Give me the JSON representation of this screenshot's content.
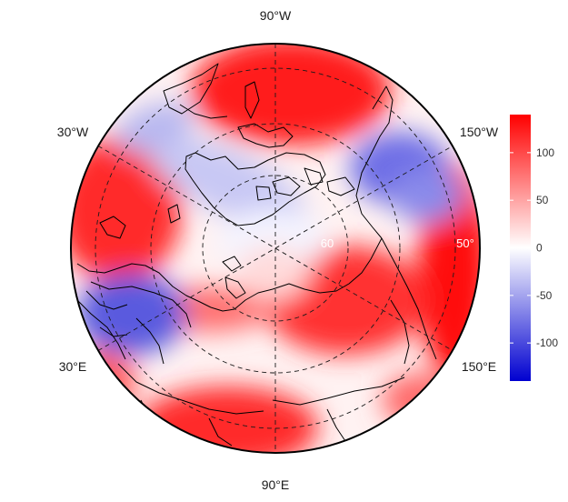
{
  "map": {
    "projection": "north-polar stereographic",
    "longitude_labels": {
      "top": "90°W",
      "upper_left": "30°W",
      "upper_right": "150°W",
      "lower_left": "30°E",
      "lower_right": "150°E",
      "bottom": "90°E"
    },
    "latitude_labels": {
      "inner": "60",
      "outer": "50°"
    },
    "colors": {
      "low": "#0000d0",
      "mid": "#ffffff",
      "high": "#ff0000",
      "graticule": "#1a1a1a",
      "coastline": "#000000"
    }
  },
  "colorbar": {
    "min": -140,
    "max": 140,
    "ticks": [
      "100",
      "50",
      "0",
      "-50",
      "-100"
    ]
  },
  "chart_data": {
    "type": "heatmap",
    "value_range": [
      -140,
      140
    ],
    "colorscale": [
      "#0000d0",
      "#ffffff",
      "#ff0000"
    ],
    "colorbar_ticks": [
      100,
      50,
      0,
      -50,
      -100
    ]
  }
}
